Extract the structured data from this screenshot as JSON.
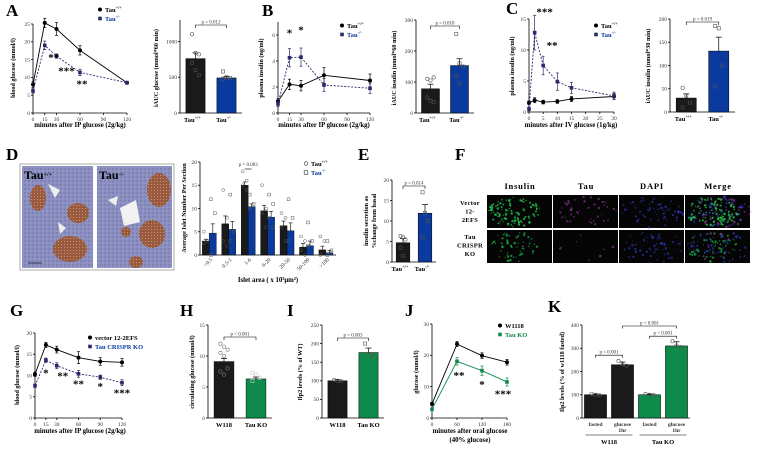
{
  "figure": {
    "panels": [
      "A",
      "B",
      "C",
      "D",
      "E",
      "F",
      "G",
      "H",
      "I",
      "J",
      "K"
    ],
    "colors": {
      "wt": "#111111",
      "ko_mouse": "#0a3a9e",
      "ko_mouse_line": "#2a2a6a",
      "ko_fly": "#0e8a4a",
      "wt_fly": "#1a1a1a"
    }
  },
  "chart_data": [
    {
      "id": "A_line",
      "type": "line",
      "panel": "A",
      "xlabel": "minutes after IP glucose (2g/kg)",
      "ylabel": "blood glucose (mmol/l)",
      "xlim": [
        0,
        120
      ],
      "ylim": [
        0,
        25
      ],
      "xticks": [
        "0",
        "15",
        "30",
        "60",
        "90",
        "120"
      ],
      "yticks": [
        "0",
        "5",
        "10",
        "15",
        "20",
        "25"
      ],
      "x": [
        0,
        15,
        30,
        60,
        120
      ],
      "series": [
        {
          "name": "Tau",
          "sup": "+/+",
          "values": [
            8,
            25.3,
            23.6,
            17.6,
            8.5
          ],
          "err": [
            0.8,
            1.3,
            1.8,
            1.3,
            0.4
          ],
          "style": "solid"
        },
        {
          "name": "Tau",
          "sup": "-/-",
          "values": [
            6.2,
            19,
            16,
            11.4,
            8.5
          ],
          "err": [
            0.6,
            1.2,
            0.6,
            0.9,
            0.4
          ],
          "style": "dashed"
        }
      ],
      "annotations": [
        {
          "x": 15,
          "text": "**"
        },
        {
          "x": 30,
          "text": "***"
        },
        {
          "x": 60,
          "text": "**"
        }
      ]
    },
    {
      "id": "A_bar",
      "type": "bar",
      "panel": "A",
      "ylabel": "iAUC glucose (mmol*60 min)",
      "ylim": [
        0,
        1300
      ],
      "yticks": [
        "0",
        "500",
        "1000"
      ],
      "categories": [
        {
          "name": "Tau",
          "sup": "+/+"
        },
        {
          "name": "Tau",
          "sup": "-/-"
        }
      ],
      "values": [
        760,
        490
      ],
      "err": [
        80,
        20
      ],
      "pvalue": "p = 0.012"
    },
    {
      "id": "B_line",
      "type": "line",
      "panel": "B",
      "xlabel": "minutes after IP glucose (2g/kg)",
      "ylabel": "plasma insulin (ng/ml)",
      "xlim": [
        0,
        120
      ],
      "ylim": [
        0,
        7
      ],
      "xticks": [
        "0",
        "15",
        "30",
        "60",
        "90",
        "120"
      ],
      "yticks": [
        "0",
        "2",
        "4",
        "6"
      ],
      "x": [
        0,
        15,
        30,
        60,
        120
      ],
      "series": [
        {
          "name": "Tau",
          "sup": "+/+",
          "values": [
            0.9,
            2.2,
            2.1,
            2.9,
            2.5
          ],
          "err": [
            0.2,
            0.4,
            0.4,
            0.6,
            0.5
          ],
          "style": "solid"
        },
        {
          "name": "Tau",
          "sup": "-/-",
          "values": [
            0.7,
            4.25,
            4.3,
            2.15,
            1.9
          ],
          "err": [
            0.2,
            0.7,
            0.7,
            0.5,
            0.4
          ],
          "style": "dashed"
        }
      ],
      "annotations": [
        {
          "x": 15,
          "text": "*"
        },
        {
          "x": 30,
          "text": "*"
        }
      ]
    },
    {
      "id": "B_bar",
      "type": "bar",
      "panel": "B",
      "ylabel": "iAUC insulin (nmol*60 min)",
      "ylim": [
        0,
        300
      ],
      "yticks": [
        "0",
        "100",
        "200",
        "300"
      ],
      "categories": [
        {
          "name": "Tau",
          "sup": "+/+"
        },
        {
          "name": "Tau",
          "sup": "-/-"
        }
      ],
      "values": [
        78,
        153
      ],
      "err": [
        15,
        22
      ],
      "pvalue": "p = 0.018"
    },
    {
      "id": "C_line",
      "type": "line",
      "panel": "C",
      "xlabel": "minutes after IV glucose (1g/kg)",
      "ylabel": "plasma insulin (ng/ml)",
      "xlim": [
        0,
        30
      ],
      "ylim": [
        0,
        15
      ],
      "xticks": [
        "0",
        "5",
        "10",
        "15",
        "20",
        "25",
        "30"
      ],
      "yticks": [
        "0",
        "5",
        "10",
        "15"
      ],
      "x": [
        0,
        2,
        5,
        10,
        15,
        30
      ],
      "series": [
        {
          "name": "Tau",
          "sup": "+/+",
          "values": [
            1.5,
            1.9,
            1.6,
            1.7,
            2.1,
            2.5
          ],
          "err": [
            0.3,
            0.4,
            0.3,
            0.3,
            0.4,
            0.5
          ],
          "style": "solid"
        },
        {
          "name": "Tau",
          "sup": "-/-",
          "values": [
            0.5,
            12.8,
            7.5,
            4.9,
            3.9,
            2.6
          ],
          "err": [
            0.3,
            2.8,
            1.5,
            1.4,
            0.9,
            0.6
          ],
          "style": "dashed"
        }
      ],
      "annotations": [
        {
          "x": 2,
          "text": "***"
        },
        {
          "x": 5,
          "text": "**"
        }
      ]
    },
    {
      "id": "C_bar",
      "type": "bar",
      "panel": "C",
      "ylabel": "iAUC insulin (nmol*30 min)",
      "ylim": [
        0,
        200
      ],
      "yticks": [
        "0",
        "50",
        "100",
        "150",
        "200"
      ],
      "categories": [
        {
          "name": "Tau",
          "sup": "+/+"
        },
        {
          "name": "Tau",
          "sup": "-/-"
        }
      ],
      "values": [
        30,
        131
      ],
      "err": [
        9,
        30
      ],
      "pvalue": "p = 0.019"
    },
    {
      "id": "D_bar",
      "type": "bar",
      "panel": "D",
      "xlabel": "Islet area ( x 10³μm²)",
      "ylabel": "Average Islet Number Per Section",
      "ylim": [
        0,
        20
      ],
      "yticks": [
        "0",
        "5",
        "10",
        "15",
        "20"
      ],
      "categories": [
        "<0.5",
        "0.5-1",
        "1-6",
        "6-20",
        "20-50",
        "50-100",
        ">100"
      ],
      "series": [
        {
          "name": "Tau",
          "sup": "+/+",
          "values": [
            3,
            6.7,
            15,
            9.5,
            6.3,
            1.7,
            1.1
          ],
          "err": [
            0.4,
            1.7,
            0.7,
            1.2,
            1,
            0.8,
            0.8
          ]
        },
        {
          "name": "Tau",
          "sup": "-/-",
          "values": [
            4.7,
            5.5,
            10.4,
            8.1,
            5.2,
            2,
            0.5
          ],
          "err": [
            2,
            1.7,
            0.6,
            1.3,
            1.7,
            1,
            0.5
          ]
        }
      ],
      "pvalue": "p = 0.003",
      "image_labels": [
        {
          "name": "Tau",
          "sup": "+/+"
        },
        {
          "name": "Tau",
          "sup": "-/-"
        }
      ]
    },
    {
      "id": "E_bar",
      "type": "bar",
      "panel": "E",
      "ylabel": "insulin secretion as %change from basal",
      "ylim": [
        0,
        20
      ],
      "yticks": [
        "0",
        "5",
        "10",
        "15",
        "20"
      ],
      "categories": [
        {
          "name": "Tau",
          "sup": "+/+"
        },
        {
          "name": "Tau",
          "sup": "-/-"
        }
      ],
      "values": [
        4.7,
        11.9
      ],
      "err": [
        1,
        2.1
      ],
      "pvalue": "p = 0.014"
    },
    {
      "id": "F_grid",
      "type": "table",
      "panel": "F",
      "columns": [
        "Insulin",
        "Tau",
        "DAPI",
        "Merge"
      ],
      "rows": [
        "Vector 12-2EFS",
        "Tau CRISPR KO"
      ]
    },
    {
      "id": "G_line",
      "type": "line",
      "panel": "G",
      "xlabel": "minutes after IP glucose (2g/kg)",
      "ylabel": "blood glucose (mmol/l)",
      "xlim": [
        0,
        120
      ],
      "ylim": [
        0,
        20
      ],
      "xticks": [
        "0",
        "15",
        "30",
        "60",
        "90",
        "120"
      ],
      "yticks": [
        "0",
        "5",
        "10",
        "15",
        "20"
      ],
      "x": [
        0,
        15,
        30,
        60,
        90,
        120
      ],
      "series": [
        {
          "name": "vector 12-2EFS",
          "values": [
            10.3,
            17.2,
            16.1,
            14.2,
            13.3,
            13.1
          ],
          "err": [
            0.5,
            0.6,
            0.8,
            1.4,
            0.9,
            0.9
          ],
          "style": "solid"
        },
        {
          "name": "Tau CRISPR KO",
          "values": [
            7.6,
            13.6,
            12.3,
            10.4,
            9.6,
            8.3
          ],
          "err": [
            0.4,
            0.5,
            0.7,
            0.8,
            0.5,
            0.7
          ],
          "style": "dashed"
        }
      ],
      "annotations": [
        {
          "x": 15,
          "text": "*"
        },
        {
          "x": 30,
          "text": "**"
        },
        {
          "x": 60,
          "text": "**"
        },
        {
          "x": 90,
          "text": "*"
        },
        {
          "x": 120,
          "text": "***"
        }
      ]
    },
    {
      "id": "H_bar",
      "type": "bar",
      "panel": "H",
      "ylabel": "circulating glucose (mmol/l)",
      "ylim": [
        0,
        15
      ],
      "yticks": [
        "0",
        "5",
        "10",
        "15"
      ],
      "categories": [
        "W118",
        "Tau KO"
      ],
      "values": [
        9.1,
        6.3
      ],
      "err": [
        0.5,
        0.3
      ],
      "pvalue": "p < 0.001"
    },
    {
      "id": "I_bar",
      "type": "bar",
      "panel": "I",
      "ylabel": "Ilp2 levels (% of WT)",
      "ylim": [
        0,
        250
      ],
      "yticks": [
        "0",
        "50",
        "100",
        "150",
        "200",
        "250"
      ],
      "categories": [
        "W118",
        "Tau KO"
      ],
      "values": [
        100,
        176
      ],
      "err": [
        3,
        12
      ],
      "pvalue": "p = 0.003"
    },
    {
      "id": "J_line",
      "type": "line",
      "panel": "J",
      "xlabel": "minutes after oral glucose",
      "xlabel2": "(40% glucose)",
      "ylabel": "glucose (mmol/l)",
      "xlim": [
        0,
        180
      ],
      "ylim": [
        0,
        30
      ],
      "xticks": [
        "0",
        "60",
        "120",
        "180"
      ],
      "yticks": [
        "0",
        "10",
        "20",
        "30"
      ],
      "x": [
        0,
        60,
        120,
        180
      ],
      "series": [
        {
          "name": "W1118",
          "values": [
            4.5,
            23.6,
            19.9,
            17.8
          ],
          "err": [
            0.5,
            0.8,
            0.9,
            0.9
          ],
          "style": "solid"
        },
        {
          "name": "Tau KO",
          "values": [
            2.8,
            18.1,
            15.1,
            11.5
          ],
          "err": [
            0.3,
            1.2,
            1.5,
            1.3
          ],
          "style": "solid"
        }
      ],
      "annotations": [
        {
          "x": 60,
          "text": "**"
        },
        {
          "x": 120,
          "text": "*"
        },
        {
          "x": 180,
          "text": "***"
        }
      ]
    },
    {
      "id": "K_bar",
      "type": "bar",
      "panel": "K",
      "ylabel": "Ilp2 levels (% of w1118 fasted)",
      "ylim": [
        0,
        400
      ],
      "yticks": [
        "0",
        "100",
        "200",
        "300",
        "400"
      ],
      "categories": [
        "fasted",
        "glucose 1hr",
        "fasted",
        "glucose 1hr"
      ],
      "groups": [
        "W118",
        "Tau KO"
      ],
      "values": [
        100,
        229,
        100,
        310
      ],
      "err": [
        3,
        12,
        3,
        18
      ],
      "pvalues": [
        "p = 0.001",
        "p < 0.001",
        "p < 0.001"
      ]
    }
  ]
}
